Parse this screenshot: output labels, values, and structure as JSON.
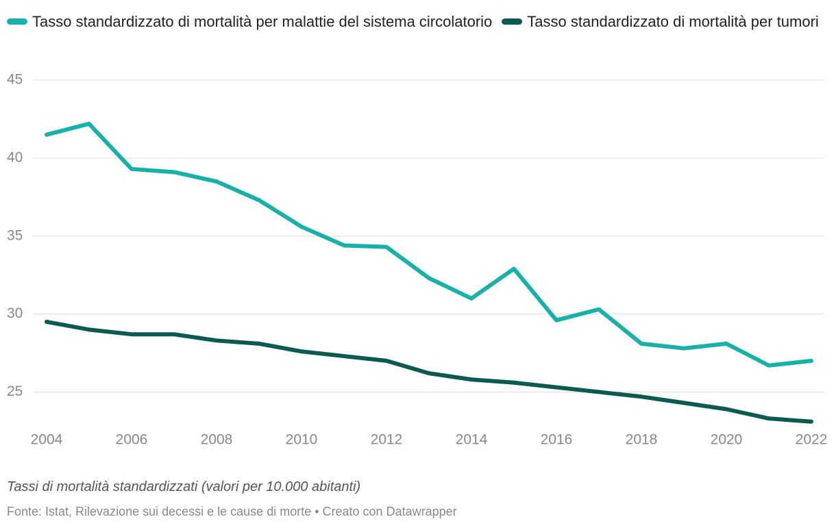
{
  "chart_data": {
    "type": "line",
    "x": [
      2004,
      2005,
      2006,
      2007,
      2008,
      2009,
      2010,
      2011,
      2012,
      2013,
      2014,
      2015,
      2016,
      2017,
      2018,
      2019,
      2020,
      2021,
      2022
    ],
    "series": [
      {
        "name": "Tasso standardizzato di mortalità per malattie del sistema circolatorio",
        "color": "#17b1aa",
        "values": [
          41.5,
          42.2,
          39.3,
          39.1,
          38.5,
          37.3,
          35.6,
          34.4,
          34.3,
          32.3,
          31.0,
          32.9,
          29.6,
          30.3,
          28.1,
          27.8,
          28.1,
          26.7,
          27.0
        ]
      },
      {
        "name": "Tasso standardizzato di mortalità per tumori",
        "color": "#0b5a52",
        "values": [
          29.5,
          29.0,
          28.7,
          28.7,
          28.3,
          28.1,
          27.6,
          27.3,
          27.0,
          26.2,
          25.8,
          25.6,
          25.3,
          25.0,
          24.7,
          24.3,
          23.9,
          23.3,
          23.1
        ]
      }
    ],
    "xlim": [
      2004,
      2022
    ],
    "xticks": [
      2004,
      2006,
      2008,
      2010,
      2012,
      2014,
      2016,
      2018,
      2020,
      2022
    ],
    "ylim": [
      23,
      45
    ],
    "yticks": [
      25,
      30,
      35,
      40,
      45
    ],
    "grid": true,
    "note": "Tassi di mortalità standardizzati (valori per 10.000 abitanti)",
    "source": "Fonte: Istat, Rilevazione sui decessi e le cause di morte • Creato con Datawrapper"
  }
}
